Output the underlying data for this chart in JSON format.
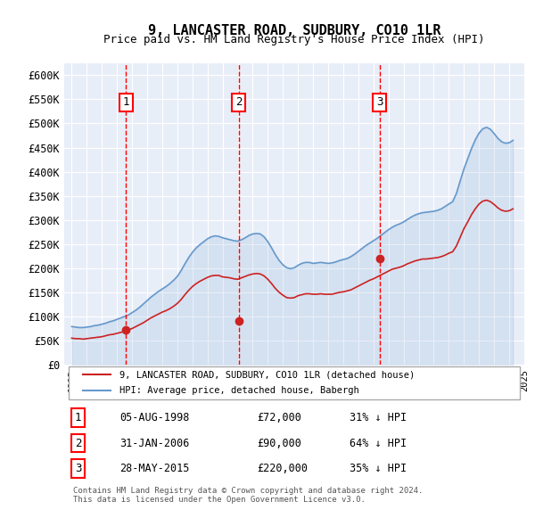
{
  "title": "9, LANCASTER ROAD, SUDBURY, CO10 1LR",
  "subtitle": "Price paid vs. HM Land Registry's House Price Index (HPI)",
  "ylabel_color": "#333333",
  "background_color": "#e8eef8",
  "plot_bg": "#e8eef8",
  "hpi_color": "#6699cc",
  "price_color": "#cc2222",
  "ylim": [
    0,
    625000
  ],
  "yticks": [
    0,
    50000,
    100000,
    150000,
    200000,
    250000,
    300000,
    350000,
    400000,
    450000,
    500000,
    550000,
    600000
  ],
  "ytick_labels": [
    "£0",
    "£50K",
    "£100K",
    "£150K",
    "£200K",
    "£250K",
    "£300K",
    "£350K",
    "£400K",
    "£450K",
    "£500K",
    "£550K",
    "£600K"
  ],
  "sale_dates": [
    1998.58,
    2006.08,
    2015.41
  ],
  "sale_prices": [
    72000,
    90000,
    220000
  ],
  "sale_labels": [
    "1",
    "2",
    "3"
  ],
  "vline_dates": [
    1998.58,
    2006.08,
    2015.41
  ],
  "legend_entries": [
    "9, LANCASTER ROAD, SUDBURY, CO10 1LR (detached house)",
    "HPI: Average price, detached house, Babergh"
  ],
  "table_rows": [
    [
      "1",
      "05-AUG-1998",
      "£72,000",
      "31% ↓ HPI"
    ],
    [
      "2",
      "31-JAN-2006",
      "£90,000",
      "64% ↓ HPI"
    ],
    [
      "3",
      "28-MAY-2015",
      "£220,000",
      "35% ↓ HPI"
    ]
  ],
  "footnote": "Contains HM Land Registry data © Crown copyright and database right 2024.\nThis data is licensed under the Open Government Licence v3.0.",
  "hpi_years": [
    1995.0,
    1995.25,
    1995.5,
    1995.75,
    1996.0,
    1996.25,
    1996.5,
    1996.75,
    1997.0,
    1997.25,
    1997.5,
    1997.75,
    1998.0,
    1998.25,
    1998.5,
    1998.75,
    1999.0,
    1999.25,
    1999.5,
    1999.75,
    2000.0,
    2000.25,
    2000.5,
    2000.75,
    2001.0,
    2001.25,
    2001.5,
    2001.75,
    2002.0,
    2002.25,
    2002.5,
    2002.75,
    2003.0,
    2003.25,
    2003.5,
    2003.75,
    2004.0,
    2004.25,
    2004.5,
    2004.75,
    2005.0,
    2005.25,
    2005.5,
    2005.75,
    2006.0,
    2006.25,
    2006.5,
    2006.75,
    2007.0,
    2007.25,
    2007.5,
    2007.75,
    2008.0,
    2008.25,
    2008.5,
    2008.75,
    2009.0,
    2009.25,
    2009.5,
    2009.75,
    2010.0,
    2010.25,
    2010.5,
    2010.75,
    2011.0,
    2011.25,
    2011.5,
    2011.75,
    2012.0,
    2012.25,
    2012.5,
    2012.75,
    2013.0,
    2013.25,
    2013.5,
    2013.75,
    2014.0,
    2014.25,
    2014.5,
    2014.75,
    2015.0,
    2015.25,
    2015.5,
    2015.75,
    2016.0,
    2016.25,
    2016.5,
    2016.75,
    2017.0,
    2017.25,
    2017.5,
    2017.75,
    2018.0,
    2018.25,
    2018.5,
    2018.75,
    2019.0,
    2019.25,
    2019.5,
    2019.75,
    2020.0,
    2020.25,
    2020.5,
    2020.75,
    2021.0,
    2021.25,
    2021.5,
    2021.75,
    2022.0,
    2022.25,
    2022.5,
    2022.75,
    2023.0,
    2023.25,
    2023.5,
    2023.75,
    2024.0,
    2024.25
  ],
  "hpi_values": [
    79000,
    78000,
    77000,
    77000,
    78000,
    79000,
    81000,
    82000,
    84000,
    86000,
    89000,
    91000,
    94000,
    97000,
    100000,
    103000,
    108000,
    113000,
    119000,
    126000,
    133000,
    140000,
    146000,
    152000,
    157000,
    162000,
    168000,
    175000,
    183000,
    195000,
    209000,
    222000,
    233000,
    242000,
    249000,
    255000,
    261000,
    265000,
    267000,
    266000,
    263000,
    261000,
    259000,
    257000,
    256000,
    259000,
    263000,
    268000,
    271000,
    272000,
    271000,
    265000,
    255000,
    242000,
    228000,
    216000,
    207000,
    201000,
    199000,
    201000,
    206000,
    210000,
    212000,
    212000,
    210000,
    211000,
    212000,
    211000,
    210000,
    211000,
    213000,
    216000,
    218000,
    220000,
    224000,
    229000,
    235000,
    241000,
    247000,
    252000,
    257000,
    262000,
    268000,
    274000,
    280000,
    285000,
    289000,
    292000,
    296000,
    301000,
    306000,
    310000,
    313000,
    315000,
    316000,
    317000,
    318000,
    320000,
    323000,
    328000,
    333000,
    338000,
    355000,
    381000,
    406000,
    427000,
    448000,
    466000,
    480000,
    489000,
    492000,
    488000,
    479000,
    469000,
    462000,
    459000,
    460000,
    465000
  ],
  "price_years": [
    1995.0,
    1995.25,
    1995.5,
    1995.75,
    1996.0,
    1996.25,
    1996.5,
    1996.75,
    1997.0,
    1997.25,
    1997.5,
    1997.75,
    1998.0,
    1998.25,
    1998.5,
    1998.75,
    1999.0,
    1999.25,
    1999.5,
    1999.75,
    2000.0,
    2000.25,
    2000.5,
    2000.75,
    2001.0,
    2001.25,
    2001.5,
    2001.75,
    2002.0,
    2002.25,
    2002.5,
    2002.75,
    2003.0,
    2003.25,
    2003.5,
    2003.75,
    2004.0,
    2004.25,
    2004.5,
    2004.75,
    2005.0,
    2005.25,
    2005.5,
    2005.75,
    2006.0,
    2006.25,
    2006.5,
    2006.75,
    2007.0,
    2007.25,
    2007.5,
    2007.75,
    2008.0,
    2008.25,
    2008.5,
    2008.75,
    2009.0,
    2009.25,
    2009.5,
    2009.75,
    2010.0,
    2010.25,
    2010.5,
    2010.75,
    2011.0,
    2011.25,
    2011.5,
    2011.75,
    2012.0,
    2012.25,
    2012.5,
    2012.75,
    2013.0,
    2013.25,
    2013.5,
    2013.75,
    2014.0,
    2014.25,
    2014.5,
    2014.75,
    2015.0,
    2015.25,
    2015.5,
    2015.75,
    2016.0,
    2016.25,
    2016.5,
    2016.75,
    2017.0,
    2017.25,
    2017.5,
    2017.75,
    2018.0,
    2018.25,
    2018.5,
    2018.75,
    2019.0,
    2019.25,
    2019.5,
    2019.75,
    2020.0,
    2020.25,
    2020.5,
    2020.75,
    2021.0,
    2021.25,
    2021.5,
    2021.75,
    2022.0,
    2022.25,
    2022.5,
    2022.75,
    2023.0,
    2023.25,
    2023.5,
    2023.75,
    2024.0,
    2024.25
  ],
  "price_indexed_values": [
    55000,
    54000,
    54000,
    53000,
    54000,
    55000,
    56000,
    57000,
    58000,
    60000,
    62000,
    63000,
    65000,
    67000,
    69000,
    72000,
    75000,
    79000,
    83000,
    87000,
    92000,
    97000,
    101000,
    105000,
    109000,
    112000,
    116000,
    121000,
    127000,
    135000,
    145000,
    154000,
    162000,
    168000,
    173000,
    177000,
    181000,
    184000,
    185000,
    185000,
    182000,
    181000,
    180000,
    178000,
    177000,
    180000,
    183000,
    186000,
    188000,
    189000,
    188000,
    184000,
    177000,
    168000,
    158000,
    150000,
    144000,
    139000,
    138000,
    139000,
    143000,
    145000,
    147000,
    147000,
    146000,
    146000,
    147000,
    146000,
    146000,
    146000,
    148000,
    150000,
    151000,
    153000,
    155000,
    159000,
    163000,
    167000,
    171000,
    175000,
    178000,
    182000,
    186000,
    190000,
    194000,
    198000,
    200000,
    202000,
    205000,
    209000,
    212000,
    215000,
    217000,
    219000,
    219000,
    220000,
    221000,
    222000,
    224000,
    227000,
    231000,
    234000,
    246000,
    264000,
    282000,
    296000,
    311000,
    323000,
    333000,
    339000,
    341000,
    338000,
    332000,
    325000,
    320000,
    318000,
    319000,
    323000
  ]
}
